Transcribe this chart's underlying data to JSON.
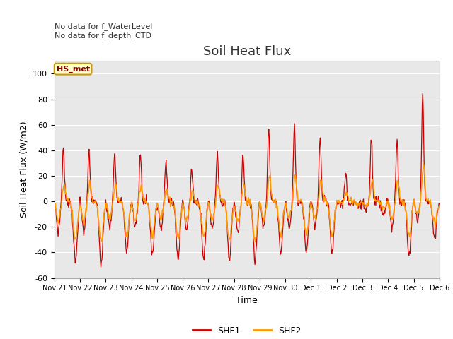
{
  "title": "Soil Heat Flux",
  "ylabel": "Soil Heat Flux (W/m2)",
  "xlabel": "Time",
  "ylim": [
    -60,
    110
  ],
  "yticks": [
    -60,
    -40,
    -20,
    0,
    20,
    40,
    60,
    80,
    100
  ],
  "xtick_labels": [
    "Nov 21",
    "Nov 22",
    "Nov 23",
    "Nov 24",
    "Nov 25",
    "Nov 26",
    "Nov 27",
    "Nov 28",
    "Nov 29",
    "Nov 30",
    "Dec 1",
    "Dec 2",
    "Dec 3",
    "Dec 4",
    "Dec 5",
    "Dec 6"
  ],
  "annotation_text": "No data for f_WaterLevel\nNo data for f_depth_CTD",
  "legend_box_label": "HS_met",
  "legend_box_color": "#ffffcc",
  "legend_box_edge": "#cc9900",
  "shf1_color": "#cc0000",
  "shf2_color": "#ff9900",
  "plot_bg_color": "#e8e8e8",
  "title_fontsize": 13,
  "axis_fontsize": 9,
  "tick_fontsize": 8
}
